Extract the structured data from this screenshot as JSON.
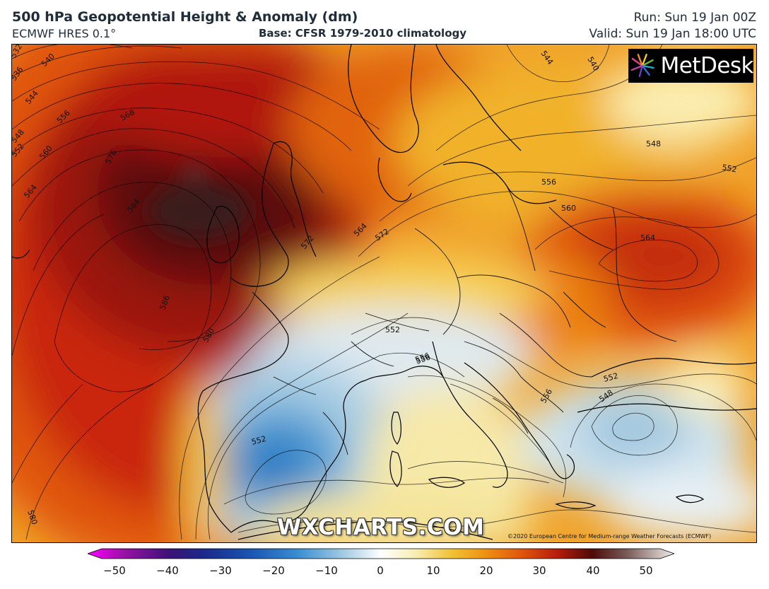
{
  "header": {
    "title": "500 hPa Geopotential Height & Anomaly (dm)",
    "model": "ECMWF HRES 0.1°",
    "climatology": "Base: CFSR 1979-2010 climatology",
    "run": "Run: Sun 19 Jan 00Z",
    "valid": "Valid: Sun 19 Jan 18:00 UTC"
  },
  "branding": {
    "logo_text": "MetDesk",
    "watermark": "WXCHARTS.COM",
    "copyright": "©2020 European Centre for Medium-range Weather Forecasts (ECMWF)"
  },
  "colorbar": {
    "ticks": [
      "−50",
      "−40",
      "−30",
      "−20",
      "−10",
      "0",
      "10",
      "20",
      "30",
      "40",
      "50"
    ],
    "stops": [
      "#ff00ff",
      "#7a0a8c",
      "#1e1a78",
      "#1a4fb0",
      "#2f86cf",
      "#a9cde3",
      "#ffffff",
      "#f7efb4",
      "#f1c234",
      "#ee8a10",
      "#d4390a",
      "#8e0e0a",
      "#3e0d0a",
      "#6d4f4b",
      "#b8a8a5",
      "#ece8e6"
    ]
  },
  "contour_labels": [
    "532",
    "536",
    "540",
    "544",
    "548",
    "552",
    "556",
    "560",
    "564",
    "568",
    "572",
    "576",
    "580",
    "584",
    "586",
    "540",
    "544",
    "548",
    "552",
    "556",
    "556",
    "560",
    "564",
    "564",
    "572",
    "580",
    "552",
    "556",
    "556",
    "552",
    "548",
    "552",
    "580"
  ]
}
